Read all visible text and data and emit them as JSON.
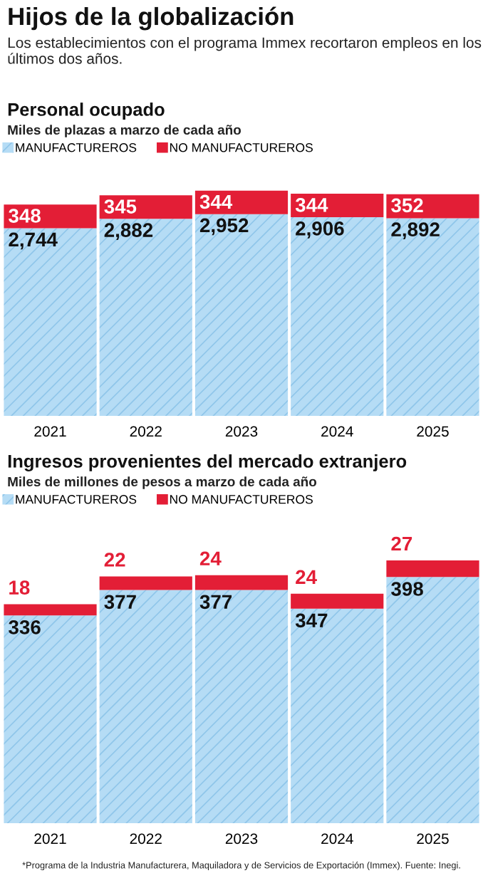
{
  "chart_data": [
    {
      "type": "bar",
      "stacked": true,
      "title": "Personal ocupado",
      "subtitle": "Miles de plazas a marzo de cada año",
      "annotations": [
        "Hijos de la globalización",
        "Los establecimientos con el programa Immex recortaron empleos en los últimos dos años."
      ],
      "categories": [
        "2021",
        "2022",
        "2023",
        "2024",
        "2025"
      ],
      "series": [
        {
          "name": "MANUFACTUREROS",
          "color": "#b5dcf5",
          "values": [
            2744,
            2882,
            2952,
            2906,
            2892
          ],
          "value_labels": [
            "2,744",
            "2,882",
            "2,952",
            "2,906",
            "2,892"
          ]
        },
        {
          "name": "NO MANUFACTUREROS",
          "color": "#e31e36",
          "values": [
            348,
            345,
            344,
            344,
            352
          ],
          "value_labels": [
            "348",
            "345",
            "344",
            "344",
            "352"
          ]
        }
      ],
      "legend": "top left",
      "grid": false,
      "tick_labels": "x"
    },
    {
      "type": "bar",
      "stacked": true,
      "title": "Ingresos provenientes del mercado extranjero",
      "subtitle": "Miles de millones de pesos a marzo de cada año",
      "annotations": [
        "*Programa de la Industria Manufacturera, Maquiladora y de Servicios de Exportación (Immex). Fuente: Inegi."
      ],
      "categories": [
        "2021",
        "2022",
        "2023",
        "2024",
        "2025"
      ],
      "series": [
        {
          "name": "MANUFACTUREROS",
          "color": "#b5dcf5",
          "values": [
            336,
            377,
            377,
            347,
            398
          ],
          "value_labels": [
            "336",
            "377",
            "377",
            "347",
            "398"
          ]
        },
        {
          "name": "NO MANUFACTUREROS",
          "color": "#e31e36",
          "values": [
            18,
            22,
            24,
            24,
            27
          ],
          "value_labels": [
            "18",
            "22",
            "24",
            "24",
            "27"
          ]
        }
      ],
      "legend": "top left",
      "grid": false,
      "tick_labels": "x"
    }
  ]
}
